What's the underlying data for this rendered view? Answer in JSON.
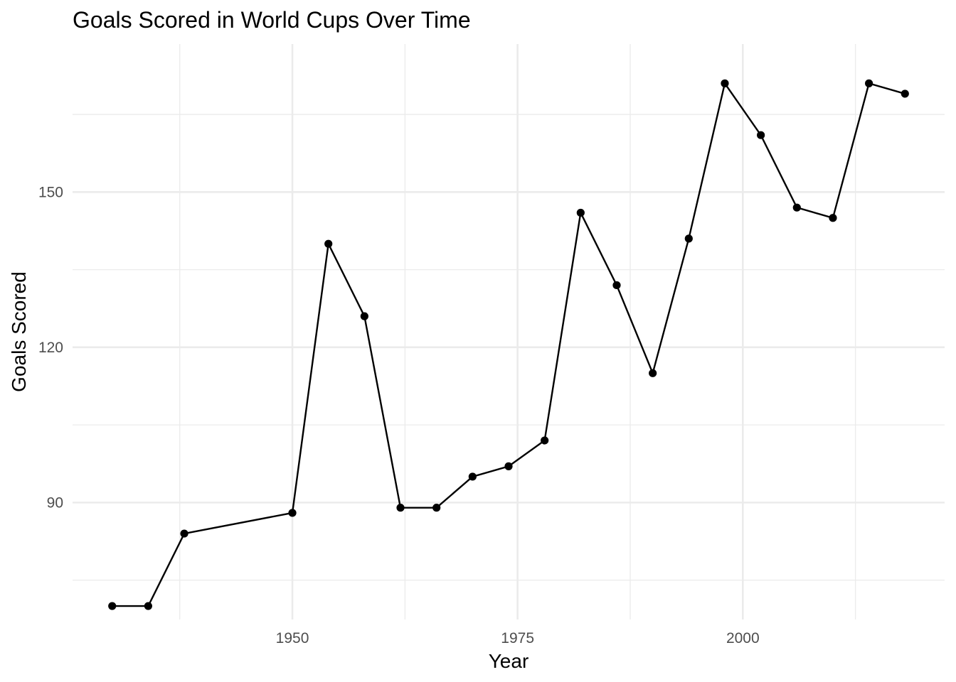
{
  "chart_data": {
    "type": "line",
    "title": "Goals Scored in World Cups Over Time",
    "xlabel": "Year",
    "ylabel": "Goals Scored",
    "xlim": [
      1925.6,
      2022.4
    ],
    "ylim": [
      67.4,
      178.6
    ],
    "x_major_ticks": [
      1950,
      1975,
      2000
    ],
    "x_minor_ticks": [
      1937.5,
      1962.5,
      1987.5,
      2012.5
    ],
    "y_major_ticks": [
      90,
      120,
      150
    ],
    "y_minor_ticks": [
      75,
      105,
      135,
      165
    ],
    "tick_labels": {
      "x": [
        "1950",
        "1975",
        "2000"
      ],
      "y": [
        "90",
        "120",
        "150"
      ]
    },
    "grid": true,
    "legend": "none",
    "colors": {
      "line": "#000000",
      "point": "#000000",
      "grid": "#ebebeb",
      "tick_text": "#4d4d4d"
    },
    "series": [
      {
        "x": [
          1930,
          1934,
          1938,
          1950,
          1954,
          1958,
          1962,
          1966,
          1970,
          1974,
          1978,
          1982,
          1986,
          1990,
          1994,
          1998,
          2002,
          2006,
          2010,
          2014,
          2018
        ],
        "values": [
          70,
          70,
          84,
          88,
          140,
          126,
          89,
          89,
          95,
          97,
          102,
          146,
          132,
          115,
          141,
          171,
          161,
          147,
          145,
          171,
          169
        ]
      }
    ]
  }
}
